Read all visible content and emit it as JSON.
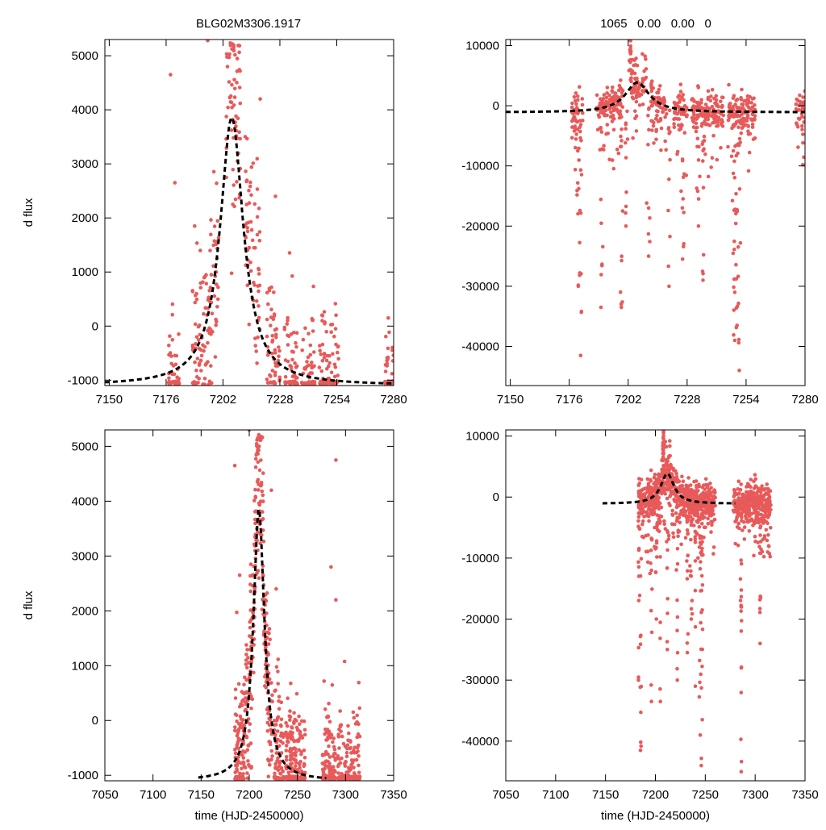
{
  "figure": {
    "title_left": "BLG02M3306.1917",
    "title_right": "1065   0.00   0.00   0",
    "colors": {
      "points": "#e85a5a",
      "model": "#000000",
      "axes": "#000000"
    }
  },
  "chart_data": [
    {
      "type": "scatter",
      "panel": "top-left",
      "xlabel": "",
      "ylabel": "d flux",
      "xlim": [
        7148,
        7280
      ],
      "ylim": [
        -1100,
        5300
      ],
      "xticks": [
        7150,
        7176,
        7202,
        7228,
        7254,
        7280
      ],
      "yticks": [
        -1000,
        0,
        1000,
        2000,
        3000,
        4000,
        5000
      ],
      "series": [
        {
          "name": "data",
          "kind": "points"
        },
        {
          "name": "model",
          "kind": "dashed-line"
        }
      ],
      "model": {
        "t0": 7206,
        "peak": 3850,
        "base": -1100,
        "tE": 6.5
      },
      "seasons": [
        {
          "start": 7177,
          "end": 7180,
          "bumps": 0.0
        },
        {
          "start": 7180,
          "end": 7182,
          "bumps": 0.0
        },
        {
          "start": 7188,
          "end": 7196,
          "bumps": 0.3
        },
        {
          "start": 7196,
          "end": 7200,
          "bumps": 0.4
        },
        {
          "start": 7203,
          "end": 7210,
          "bumps": 1.0
        },
        {
          "start": 7212,
          "end": 7219,
          "bumps": 0.7
        },
        {
          "start": 7222,
          "end": 7228,
          "bumps": 0.3
        },
        {
          "start": 7230,
          "end": 7236,
          "bumps": 0.0
        },
        {
          "start": 7238,
          "end": 7244,
          "bumps": 0.0
        },
        {
          "start": 7246,
          "end": 7255,
          "bumps": 0.0
        },
        {
          "start": 7276,
          "end": 7280,
          "bumps": 0.0
        }
      ],
      "outliers": [
        [
          7178,
          4650
        ],
        [
          7195,
          5280
        ],
        [
          7180,
          2650
        ],
        [
          7219,
          4200
        ],
        [
          7226,
          2400
        ]
      ]
    },
    {
      "type": "scatter",
      "panel": "top-right",
      "xlabel": "",
      "ylabel": "",
      "xlim": [
        7148,
        7280
      ],
      "ylim": [
        -46500,
        11000
      ],
      "xticks": [
        7150,
        7176,
        7202,
        7228,
        7254,
        7280
      ],
      "yticks": [
        -40000,
        -30000,
        -20000,
        -10000,
        0,
        10000
      ],
      "series": [
        {
          "name": "data",
          "kind": "points"
        },
        {
          "name": "model",
          "kind": "dashed-line"
        }
      ],
      "model": {
        "t0": 7206,
        "peak": 3850,
        "base": -1100,
        "tE": 6.5
      },
      "seasons": [
        {
          "start": 7177,
          "end": 7182,
          "bumps": 0.0
        },
        {
          "start": 7188,
          "end": 7200,
          "bumps": 0.3
        },
        {
          "start": 7203,
          "end": 7210,
          "bumps": 1.0
        },
        {
          "start": 7212,
          "end": 7219,
          "bumps": 0.7
        },
        {
          "start": 7222,
          "end": 7228,
          "bumps": 0.3
        },
        {
          "start": 7230,
          "end": 7244,
          "bumps": 0.0
        },
        {
          "start": 7246,
          "end": 7258,
          "bumps": 0.0
        },
        {
          "start": 7276,
          "end": 7280,
          "bumps": 0.0
        }
      ],
      "dips": [
        [
          7180,
          -30000
        ],
        [
          7181,
          -41500
        ],
        [
          7190,
          -33500
        ],
        [
          7199,
          -33500
        ],
        [
          7201,
          -20000
        ],
        [
          7211,
          -25000
        ],
        [
          7220,
          -30000
        ],
        [
          7226,
          -25500
        ],
        [
          7233,
          -20000
        ],
        [
          7235,
          -29000
        ],
        [
          7249,
          -39000
        ],
        [
          7251,
          -44000
        ],
        [
          7250,
          -36500
        ],
        [
          7249,
          -31000
        ]
      ],
      "spike": [
        7203,
        11500
      ]
    },
    {
      "type": "scatter",
      "panel": "bottom-left",
      "xlabel": "time (HJD-2450000)",
      "ylabel": "d flux",
      "xlim": [
        7050,
        7350
      ],
      "ylim": [
        -1100,
        5300
      ],
      "xticks": [
        7050,
        7100,
        7150,
        7200,
        7250,
        7300,
        7350
      ],
      "yticks": [
        -1000,
        0,
        1000,
        2000,
        3000,
        4000,
        5000
      ],
      "series": [
        {
          "name": "data",
          "kind": "points"
        },
        {
          "name": "model",
          "kind": "dashed-line"
        }
      ],
      "model": {
        "t0": 7210,
        "peak": 3850,
        "base": -1100,
        "tE": 7.0,
        "start": 7147,
        "end": 7280
      },
      "seasons": [
        {
          "start": 7185,
          "end": 7196,
          "bumps": 0.3
        },
        {
          "start": 7196,
          "end": 7206,
          "bumps": 0.5
        },
        {
          "start": 7206,
          "end": 7215,
          "bumps": 1.0
        },
        {
          "start": 7215,
          "end": 7224,
          "bumps": 0.5
        },
        {
          "start": 7226,
          "end": 7236,
          "bumps": 0.1
        },
        {
          "start": 7238,
          "end": 7258,
          "bumps": 0.0
        },
        {
          "start": 7276,
          "end": 7290,
          "bumps": 0.0
        },
        {
          "start": 7292,
          "end": 7315,
          "bumps": 0.0
        }
      ],
      "outliers": [
        [
          7185,
          4650
        ],
        [
          7200,
          5300
        ],
        [
          7190,
          2650
        ],
        [
          7223,
          4200
        ],
        [
          7228,
          2400
        ],
        [
          7290,
          4750
        ],
        [
          7285,
          2800
        ],
        [
          7290,
          2200
        ]
      ]
    },
    {
      "type": "scatter",
      "panel": "bottom-right",
      "xlabel": "time (HJD-2450000)",
      "ylabel": "",
      "xlim": [
        7050,
        7350
      ],
      "ylim": [
        -46500,
        11000
      ],
      "xticks": [
        7050,
        7100,
        7150,
        7200,
        7250,
        7300,
        7350
      ],
      "yticks": [
        -40000,
        -30000,
        -20000,
        -10000,
        0,
        10000
      ],
      "series": [
        {
          "name": "data",
          "kind": "points"
        },
        {
          "name": "model",
          "kind": "dashed-line"
        }
      ],
      "model": {
        "t0": 7212,
        "peak": 3850,
        "base": -1100,
        "tE": 8.0,
        "start": 7147,
        "end": 7280
      },
      "seasons": [
        {
          "start": 7183,
          "end": 7205,
          "bumps": 0.3
        },
        {
          "start": 7206,
          "end": 7215,
          "bumps": 1.0
        },
        {
          "start": 7215,
          "end": 7226,
          "bumps": 0.4
        },
        {
          "start": 7226,
          "end": 7260,
          "bumps": 0.0
        },
        {
          "start": 7278,
          "end": 7316,
          "bumps": 0.0
        }
      ],
      "dips": [
        [
          7183,
          -30000
        ],
        [
          7185,
          -41500
        ],
        [
          7196,
          -33500
        ],
        [
          7205,
          -33500
        ],
        [
          7201,
          -20000
        ],
        [
          7212,
          -25000
        ],
        [
          7222,
          -30000
        ],
        [
          7232,
          -25500
        ],
        [
          7236,
          -20000
        ],
        [
          7240,
          -31000
        ],
        [
          7245,
          -39000
        ],
        [
          7246,
          -44000
        ],
        [
          7247,
          -36500
        ],
        [
          7286,
          -28000
        ],
        [
          7305,
          -24000
        ],
        [
          7286,
          -45000
        ]
      ],
      "spike": [
        7208,
        11500
      ]
    }
  ]
}
